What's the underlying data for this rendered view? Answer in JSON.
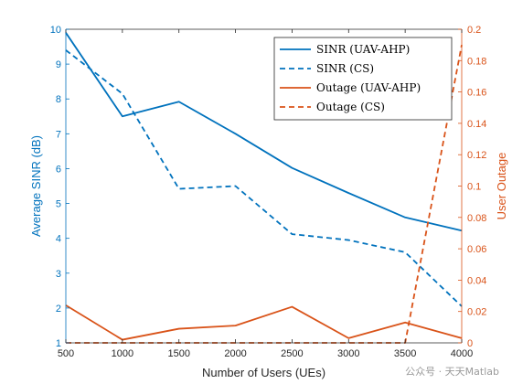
{
  "chart_data": {
    "type": "line",
    "x": [
      500,
      1000,
      1500,
      2000,
      2500,
      3000,
      3500,
      4000
    ],
    "xlabel": "Number of Users (UEs)",
    "xlim": [
      500,
      4000
    ],
    "xticks": [
      500,
      1000,
      1500,
      2000,
      2500,
      3000,
      3500,
      4000
    ],
    "y_left": {
      "label": "Average SINR (dB)",
      "lim": [
        1,
        10
      ],
      "ticks": [
        1,
        2,
        3,
        4,
        5,
        6,
        7,
        8,
        9,
        10
      ],
      "color": "#0072BD"
    },
    "y_right": {
      "label": "User Outage",
      "lim": [
        0,
        0.2
      ],
      "ticks": [
        0,
        0.02,
        0.04,
        0.06,
        0.08,
        0.1,
        0.12,
        0.14,
        0.16,
        0.18,
        0.2
      ],
      "tick_labels": [
        "0",
        "0.02",
        "0.04",
        "0.06",
        "0.08",
        "0.1",
        "0.12",
        "0.14",
        "0.16",
        "0.18",
        "0.2"
      ],
      "color": "#D95319"
    },
    "series": [
      {
        "name": "SINR (UAV-AHP)",
        "axis": "left",
        "style": "solid",
        "color": "#0072BD",
        "values": [
          9.9,
          7.5,
          7.92,
          7.0,
          6.02,
          5.3,
          4.6,
          4.22
        ]
      },
      {
        "name": "SINR (CS)",
        "axis": "left",
        "style": "dashed",
        "color": "#0072BD",
        "values": [
          9.4,
          8.15,
          5.42,
          5.5,
          4.12,
          3.95,
          3.6,
          2.05
        ]
      },
      {
        "name": "Outage (UAV-AHP)",
        "axis": "right",
        "style": "solid",
        "color": "#D95319",
        "values": [
          0.024,
          0.002,
          0.009,
          0.011,
          0.023,
          0.003,
          0.013,
          0.003
        ]
      },
      {
        "name": "Outage (CS)",
        "axis": "right",
        "style": "dashed",
        "color": "#D95319",
        "values": [
          0,
          0,
          0,
          0,
          0,
          0,
          0,
          0.19
        ]
      }
    ],
    "legend_position": "top-right",
    "grid": false
  },
  "watermark": "公众号 · 天天Matlab"
}
